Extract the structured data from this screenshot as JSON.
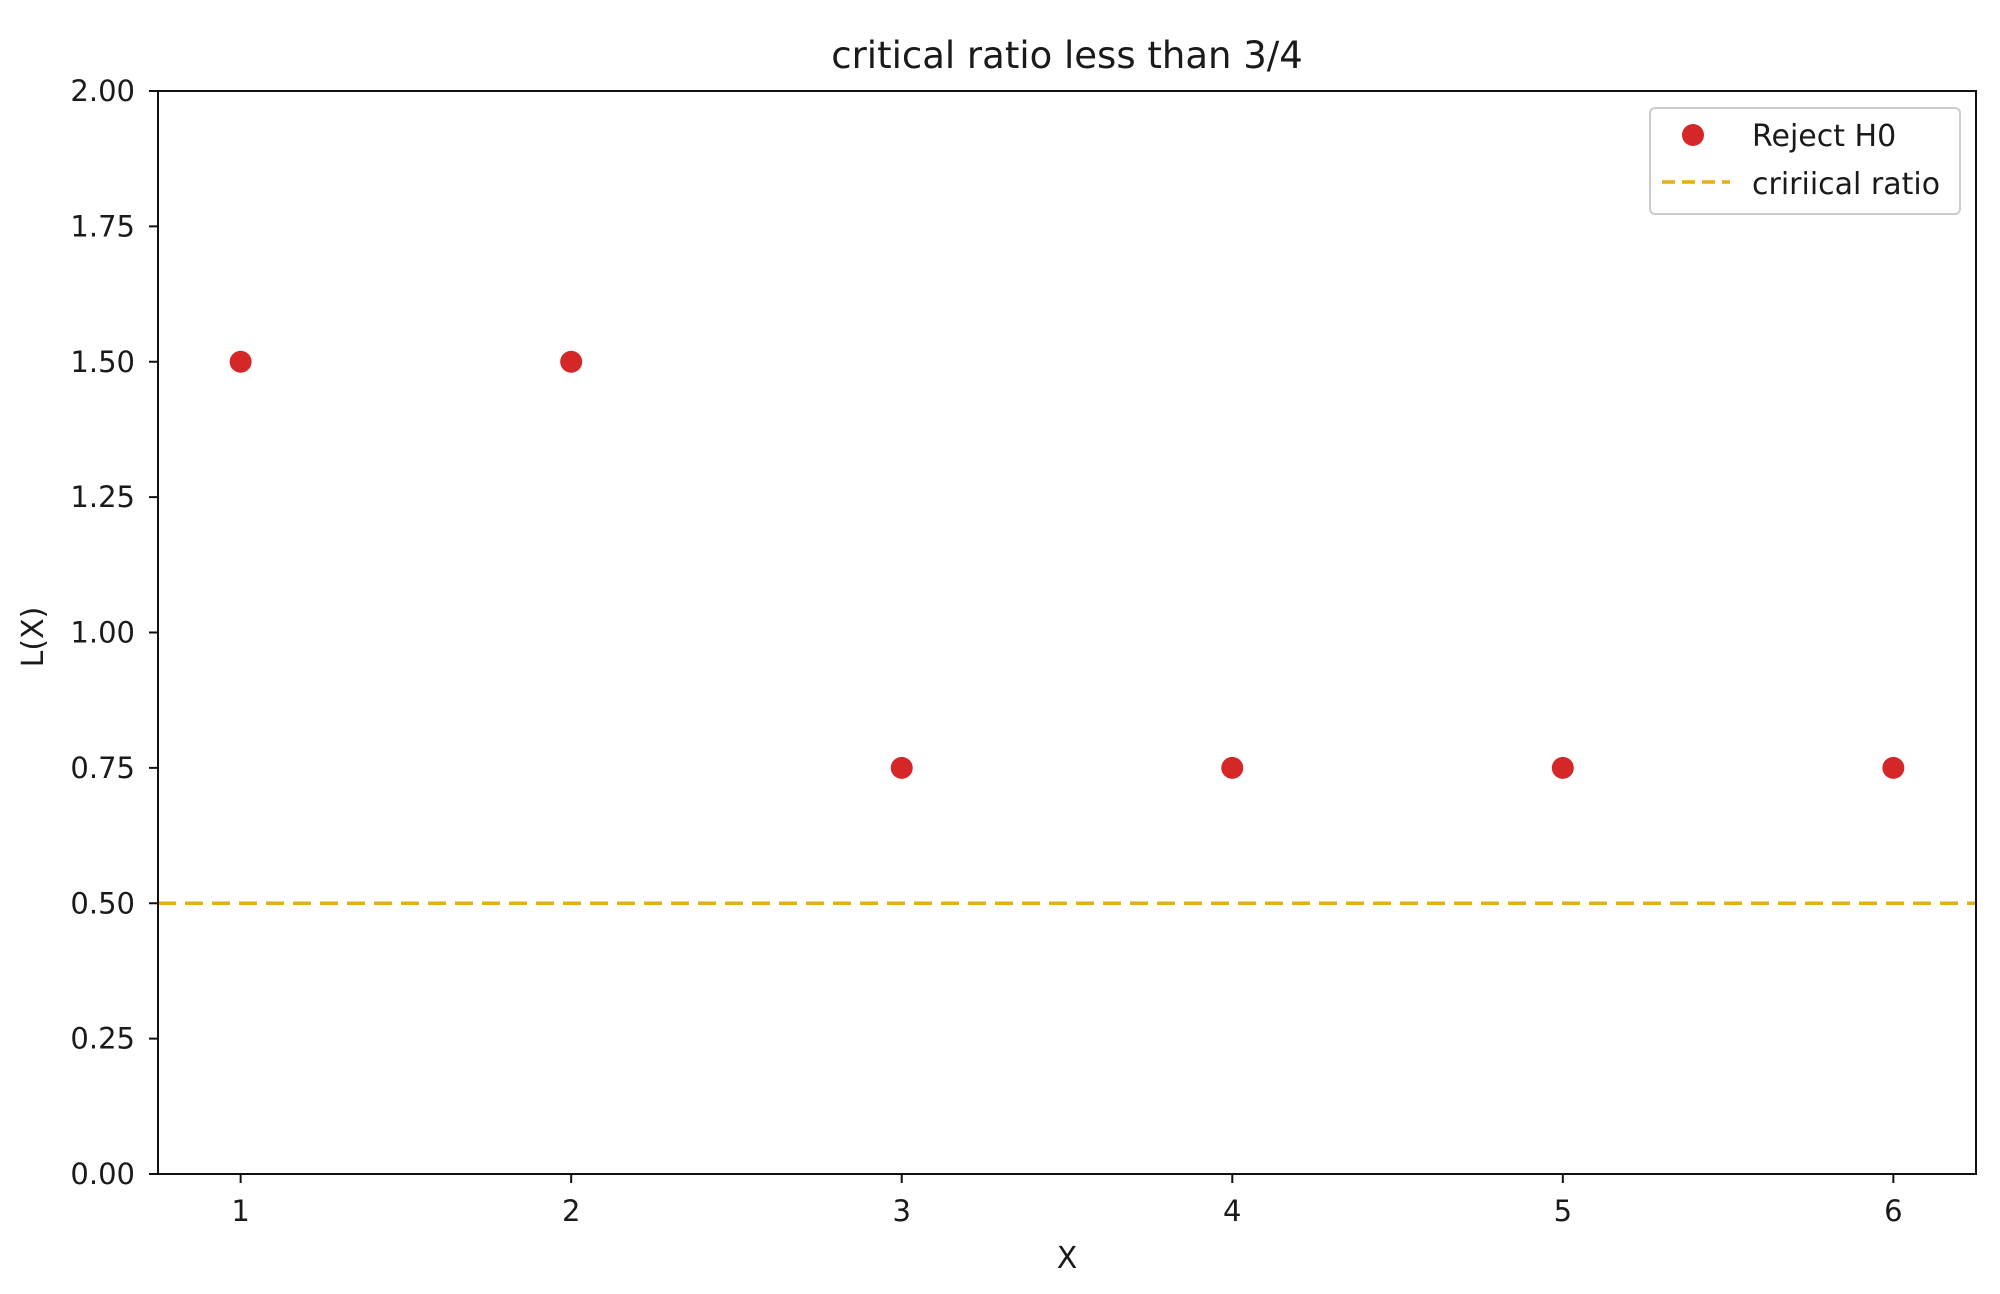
{
  "chart_data": {
    "type": "scatter",
    "title": "critical ratio less than 3/4",
    "xlabel": "X",
    "ylabel": "L(X)",
    "xlim": [
      0.75,
      6.25
    ],
    "ylim": [
      0,
      2
    ],
    "xticks": [
      1,
      2,
      3,
      4,
      5,
      6
    ],
    "xtick_labels": [
      "1",
      "2",
      "3",
      "4",
      "5",
      "6"
    ],
    "yticks": [
      0,
      0.25,
      0.5,
      0.75,
      1,
      1.25,
      1.5,
      1.75,
      2
    ],
    "ytick_labels": [
      "0.00",
      "0.25",
      "0.50",
      "0.75",
      "1.00",
      "1.25",
      "1.50",
      "1.75",
      "2.00"
    ],
    "grid": false,
    "legend_position": "top-right",
    "series": [
      {
        "name": "Reject H0",
        "kind": "scatter",
        "color": "#d62728",
        "x": [
          1,
          2,
          3,
          4,
          5,
          6
        ],
        "y": [
          1.5,
          1.5,
          0.75,
          0.75,
          0.75,
          0.75
        ]
      },
      {
        "name": "cririical ratio",
        "kind": "hline",
        "color": "#e5ae12",
        "linestyle": "dashed",
        "y": 0.5
      }
    ]
  }
}
